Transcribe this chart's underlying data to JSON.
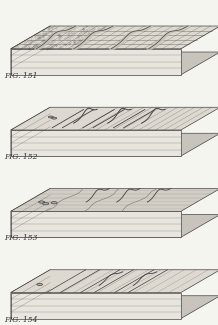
{
  "title": "",
  "background_color": "#f5f5f0",
  "fig_labels": [
    "FIG. 151",
    "FIG. 152",
    "FIG. 153",
    "FIG. 154"
  ],
  "label_fontsize": 5.5,
  "label_color": "#333333",
  "panel_bg": "#f0ede8",
  "block_face_color": "#e8e4de",
  "block_side_color": "#d0ccc4",
  "block_bottom_color": "#c8c4bc",
  "line_color": "#444444",
  "hatch_color": "#666666",
  "n_panels": 4,
  "figsize": [
    2.18,
    3.25
  ],
  "dpi": 100
}
